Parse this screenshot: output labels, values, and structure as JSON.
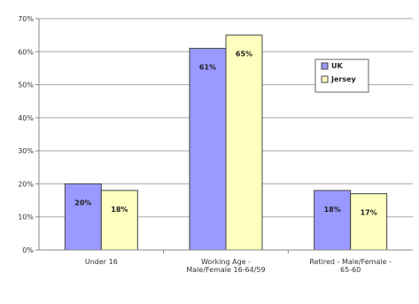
{
  "chart_data": {
    "type": "bar",
    "categories": [
      [
        "Under 16"
      ],
      [
        "Working Age -",
        "Male/Female 16-64/59"
      ],
      [
        "Retired - Male/Female -",
        "65-60"
      ]
    ],
    "series": [
      {
        "name": "UK",
        "values": [
          20,
          61,
          18
        ],
        "labels": [
          "20%",
          "61%",
          "18%"
        ],
        "color": "#9999ff"
      },
      {
        "name": "Jersey",
        "values": [
          18,
          65,
          17
        ],
        "labels": [
          "18%",
          "65%",
          "17%"
        ],
        "color": "#ffffc0"
      }
    ],
    "y_ticks": [
      0,
      10,
      20,
      30,
      40,
      50,
      60,
      70
    ],
    "y_tick_labels": [
      "0%",
      "10%",
      "20%",
      "30%",
      "40%",
      "50%",
      "60%",
      "70%"
    ],
    "ylim": [
      0,
      70
    ],
    "grid": true,
    "legend_position": "right-inside"
  }
}
